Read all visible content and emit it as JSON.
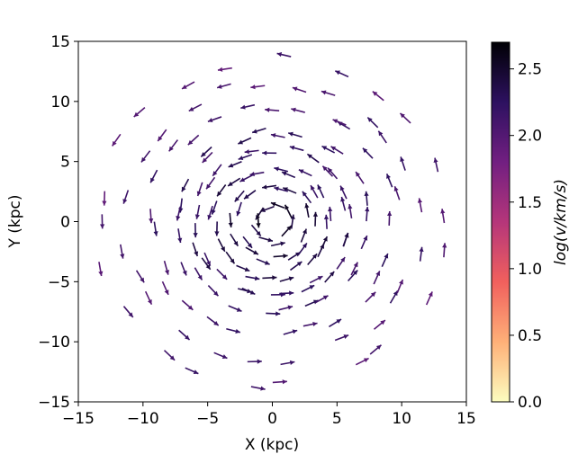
{
  "chart_data": {
    "type": "quiver",
    "title": "",
    "xlabel": "X (kpc)",
    "ylabel": "Y (kpc)",
    "xlim": [
      -15,
      15
    ],
    "ylim": [
      -15,
      15
    ],
    "xticks": [
      -15,
      -10,
      -5,
      0,
      5,
      10,
      15
    ],
    "yticks": [
      -15,
      -10,
      -5,
      0,
      5,
      10,
      15
    ],
    "xtick_labels": [
      "−15",
      "−10",
      "−5",
      "0",
      "5",
      "10",
      "15"
    ],
    "ytick_labels": [
      "−15",
      "−10",
      "−5",
      "0",
      "5",
      "10",
      "15"
    ],
    "grid": false,
    "rotation": "counter-clockwise",
    "colorbar": {
      "label": "log(v/km/s)",
      "range": [
        0.0,
        2.7
      ],
      "ticks": [
        0.0,
        0.5,
        1.0,
        1.5,
        2.0,
        2.5
      ],
      "tick_labels": [
        "0.0",
        "0.5",
        "1.0",
        "1.5",
        "2.0",
        "2.5"
      ],
      "colormap": "magma_r",
      "colors": [
        "#fcfdbf",
        "#feb078",
        "#f1605d",
        "#b5367a",
        "#721f81",
        "#2d1160",
        "#000004"
      ]
    },
    "ring_samples": [
      {
        "r": 1.5,
        "n": 10,
        "log_v": 2.45
      },
      {
        "r": 3.0,
        "n": 18,
        "log_v": 2.35
      },
      {
        "r": 4.5,
        "n": 24,
        "log_v": 2.3
      },
      {
        "r": 6.0,
        "n": 30,
        "log_v": 2.25
      },
      {
        "r": 7.5,
        "n": 26,
        "log_v": 2.2
      },
      {
        "r": 9.5,
        "n": 26,
        "log_v": 2.15
      },
      {
        "r": 11.5,
        "n": 24,
        "log_v": 2.1
      },
      {
        "r": 13.5,
        "n": 22,
        "log_v": 2.05
      }
    ]
  }
}
